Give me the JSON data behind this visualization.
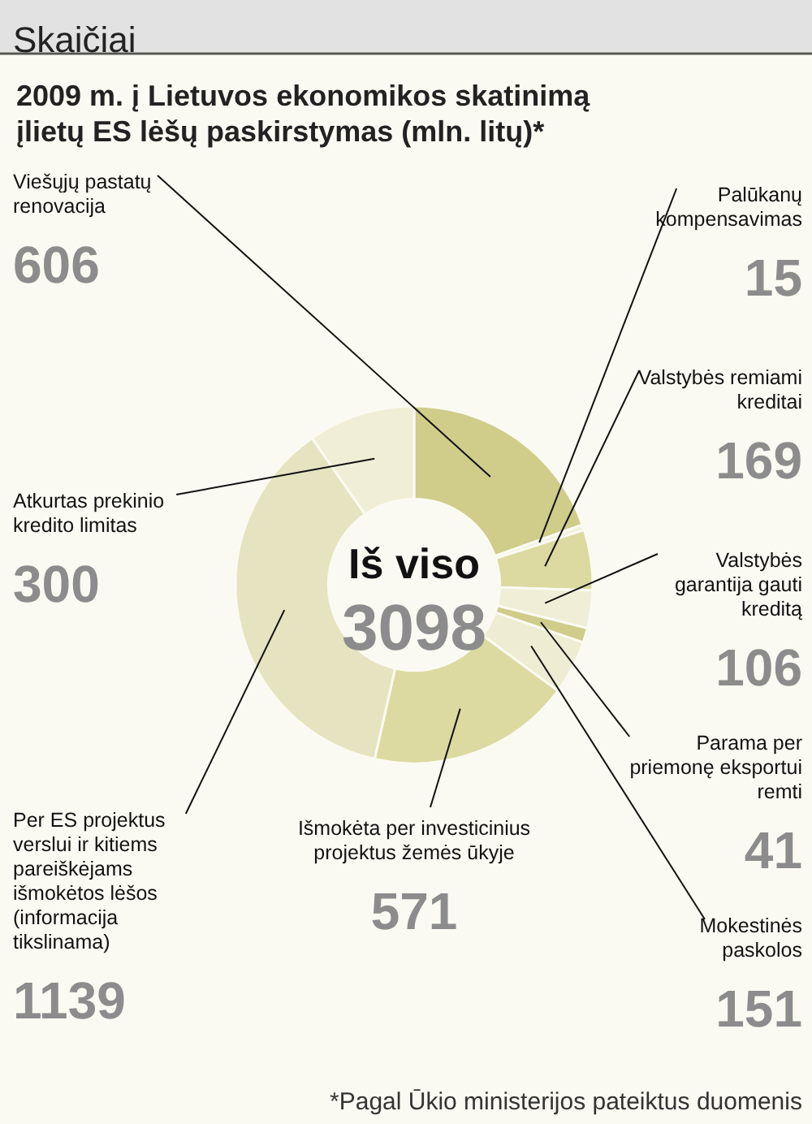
{
  "chart_data": {
    "type": "donut",
    "title": "Skaičiai",
    "subtitle": "2009 m. į Lietuvos ekonomikos skatinimą įlietų ES lėšų paskirstymas (mln. litų)*",
    "categories": [
      "Viešųjų pastatų renovacija",
      "Palūkanų kompensavimas",
      "Valstybės remiami kreditai",
      "Valstybės garantija gauti kreditą",
      "Parama per priemonę eksportui remti",
      "Mokestinės paskolos",
      "Išmokėta per investicinius projektus žemės ūkyje",
      "Per ES projektus verslui ir kitiems pareiškėjams išmokėtos lėšos (informacija tikslinama)",
      "Atkurtas prekinio kredito limitas"
    ],
    "values": [
      606,
      15,
      169,
      106,
      41,
      151,
      571,
      1139,
      300
    ],
    "colors": [
      "#d0cc8a",
      "#f3f1dc",
      "#dcdaa0",
      "#f0eed6",
      "#d0cc8a",
      "#eeecd2",
      "#dcdaa0",
      "#e6e4c0",
      "#f0eed6"
    ],
    "data_labels": true,
    "annotations": [
      "Iš viso",
      "3098",
      "*Pagal Ūkio ministerijos pateiktus duomenis"
    ]
  }
}
